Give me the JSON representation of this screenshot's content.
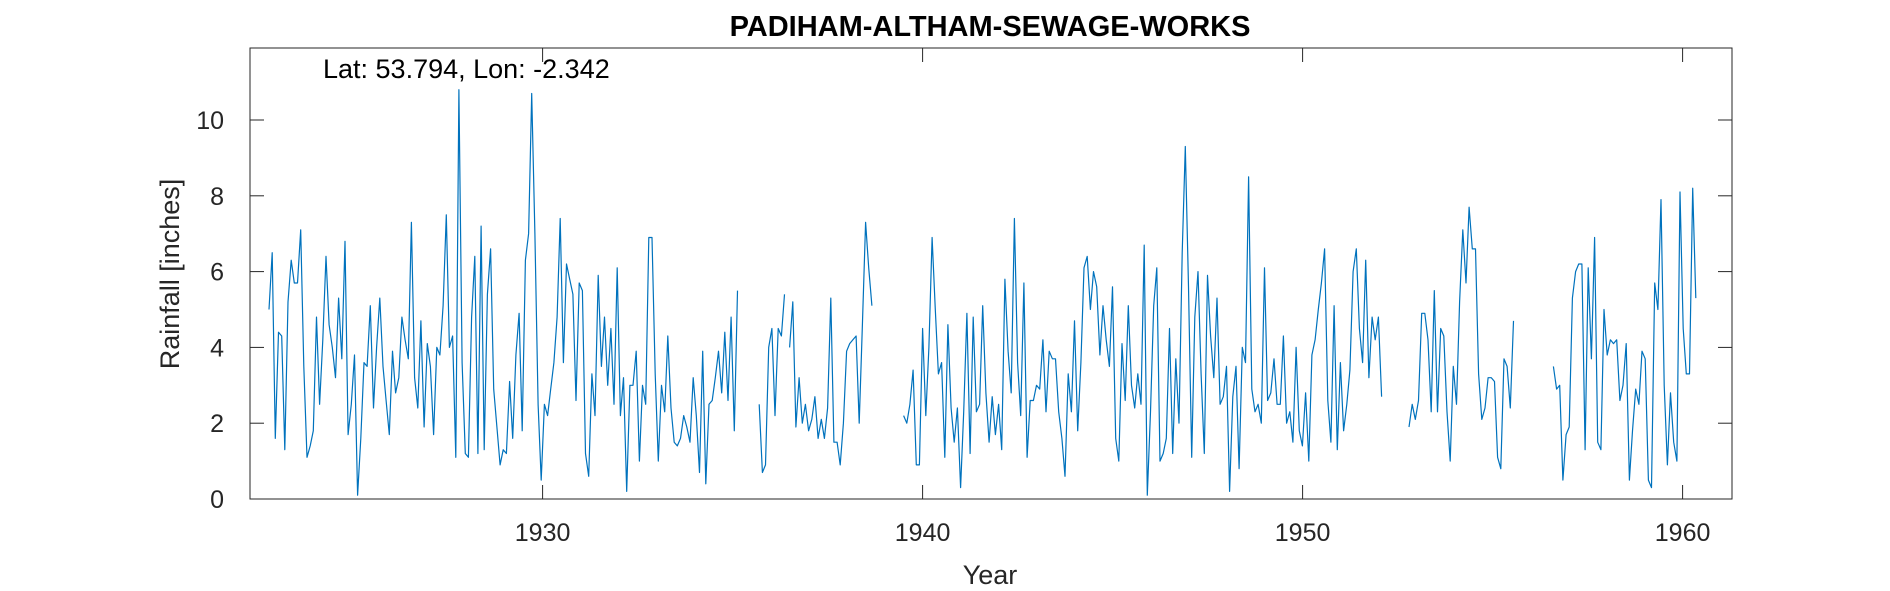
{
  "chart_data": {
    "type": "line",
    "title": "PADIHAM-ALTHAM-SEWAGE-WORKS",
    "annotation": "Lat: 53.794, Lon: -2.342",
    "xlabel": "Year",
    "ylabel": "Rainfall [inches]",
    "xlim": [
      1922.3,
      1961.3
    ],
    "ylim": [
      0,
      11.9
    ],
    "xticks": [
      1930,
      1940,
      1950,
      1960
    ],
    "yticks": [
      0,
      2,
      4,
      6,
      8,
      10
    ],
    "grid": false,
    "line_color": "#0072BD",
    "series": [
      {
        "start": 1922.8,
        "step": 0.0833,
        "values": [
          5.0,
          6.5,
          1.6,
          4.4,
          4.3,
          1.3,
          5.2,
          6.3,
          5.7,
          5.7,
          7.1,
          3.5,
          1.1,
          1.4,
          1.8,
          4.8,
          2.5,
          4.2,
          6.4,
          4.6,
          4.0,
          3.2,
          5.3,
          3.7,
          6.8,
          1.7,
          2.5,
          3.8,
          0.1,
          1.6,
          3.6,
          3.5,
          5.1,
          2.4,
          4.0,
          5.3,
          3.5,
          2.6,
          1.7,
          3.9,
          2.8,
          3.2,
          4.8,
          4.2,
          3.7,
          7.3,
          3.2,
          2.4,
          4.7,
          1.9,
          4.1,
          3.5,
          1.7,
          4.0,
          3.8,
          5.1,
          7.5,
          4.0,
          4.3,
          1.1,
          10.8,
          3.6,
          1.2,
          1.1,
          4.8,
          6.4,
          1.2,
          7.2,
          1.3,
          5.4,
          6.6,
          2.9,
          1.9,
          0.9,
          1.3,
          1.2,
          3.1,
          1.6,
          3.8,
          4.9,
          1.8,
          6.3,
          7.0,
          10.7,
          7.0,
          2.5,
          0.5,
          2.5,
          2.2,
          2.9,
          3.6,
          4.8,
          7.4,
          3.6,
          6.2,
          5.8,
          5.4,
          2.6,
          5.7,
          5.5,
          1.2,
          0.6,
          3.3,
          2.2,
          5.9,
          3.5,
          4.8,
          3.0,
          4.5,
          2.5,
          6.1,
          2.2,
          3.2,
          0.2,
          3.0,
          3.0,
          3.9,
          1.0,
          3.0,
          2.5,
          6.9,
          6.9,
          3.3,
          1.0,
          3.0,
          2.3,
          4.3,
          2.4,
          1.5,
          1.4,
          1.6,
          2.2,
          1.9,
          1.5,
          3.2,
          2.2,
          0.7,
          3.9,
          0.4,
          2.5,
          2.6,
          3.2,
          3.9,
          2.8,
          4.4,
          2.6,
          4.8,
          1.8,
          5.5
        ]
      },
      {
        "start": 1935.7,
        "step": 0.0833,
        "values": [
          2.5,
          0.7,
          0.9,
          4.0,
          4.5,
          2.2,
          4.5,
          4.3,
          5.4
        ]
      },
      {
        "start": 1936.5,
        "step": 0.0833,
        "values": [
          4.0,
          5.2,
          1.9,
          3.2,
          2.0,
          2.5,
          1.8,
          2.1,
          2.7,
          1.6,
          2.1,
          1.6,
          2.4,
          5.3,
          1.5,
          1.5,
          0.9,
          2.0,
          3.9,
          4.1,
          4.2,
          4.3,
          2.0,
          4.6,
          7.3,
          6.1,
          5.1
        ]
      },
      {
        "start": 1939.5,
        "step": 0.0833,
        "values": [
          2.2,
          2.0,
          2.5,
          3.4,
          0.9,
          0.9,
          4.5,
          2.2,
          4.0,
          6.9,
          5.0,
          3.3,
          3.6,
          1.1,
          4.6,
          2.4,
          1.5,
          2.4,
          0.3,
          2.3,
          4.9,
          1.2,
          4.8,
          2.3,
          2.5,
          5.1,
          2.8,
          1.5,
          2.7,
          1.7,
          2.5,
          1.3,
          5.8,
          3.9,
          2.8,
          7.4,
          3.6,
          2.2,
          5.7,
          1.1,
          2.6,
          2.6,
          3.0,
          2.9,
          4.2,
          2.3,
          3.9,
          3.7,
          3.7,
          2.3,
          1.6,
          0.6,
          3.3,
          2.3,
          4.7,
          1.8,
          3.6,
          6.1,
          6.4,
          5.0,
          6.0,
          5.6,
          3.8,
          5.1,
          4.2,
          3.5,
          5.6,
          1.6,
          1.0,
          4.1,
          2.6,
          5.1,
          3.0,
          2.4,
          3.3,
          2.5,
          6.7,
          0.1,
          2.3,
          5.1,
          6.1,
          1.0,
          1.2,
          1.6,
          4.5,
          1.2,
          3.7,
          2.0,
          6.5,
          9.3,
          5.6,
          1.1,
          4.8,
          6.0,
          3.3,
          1.2,
          5.9,
          4.3,
          3.2,
          5.3,
          2.5,
          2.7,
          3.5,
          0.2,
          2.7,
          3.5,
          0.8,
          4.0,
          3.6,
          8.5,
          2.9,
          2.3,
          2.5,
          2.0,
          6.1,
          2.6,
          2.8,
          3.7,
          2.5,
          2.5,
          4.3,
          2.0,
          2.3,
          1.5,
          4.0,
          1.8,
          1.4,
          2.8,
          1.0,
          3.8,
          4.2,
          5.0,
          5.7,
          6.6,
          2.6,
          1.5,
          5.1,
          1.3,
          3.6,
          1.8,
          2.5,
          3.4,
          6.0,
          6.6,
          4.5,
          3.6,
          6.3,
          3.2,
          4.8,
          4.2,
          4.8,
          2.7
        ]
      },
      {
        "start": 1952.8,
        "step": 0.0833,
        "values": [
          1.9,
          2.5,
          2.1,
          2.6,
          4.9,
          4.9,
          4.2,
          2.3,
          5.5,
          2.3,
          4.5,
          4.3,
          2.3,
          1.0,
          3.5,
          2.5,
          5.2,
          7.1,
          5.7,
          7.7,
          6.6,
          6.6,
          3.3,
          2.1,
          2.4,
          3.2,
          3.2,
          3.1,
          1.1,
          0.8,
          3.7,
          3.5,
          2.4,
          4.7
        ]
      },
      {
        "start": 1956.6,
        "step": 0.0833,
        "values": [
          3.5,
          2.9,
          3.0,
          0.5,
          1.7,
          1.9,
          5.3,
          6.0,
          6.2,
          6.2,
          1.3,
          6.1,
          3.7,
          6.9,
          1.5,
          1.3,
          5.0,
          3.8,
          4.2,
          4.1,
          4.2,
          2.6,
          3.0,
          4.1,
          0.5,
          1.8,
          2.9,
          2.5,
          3.9,
          3.7,
          0.5,
          0.3,
          5.7,
          5.0,
          7.9,
          3.0,
          0.9,
          2.8,
          1.5,
          1.0,
          8.1,
          4.5,
          3.3,
          3.3,
          8.2,
          5.3
        ]
      }
    ]
  }
}
